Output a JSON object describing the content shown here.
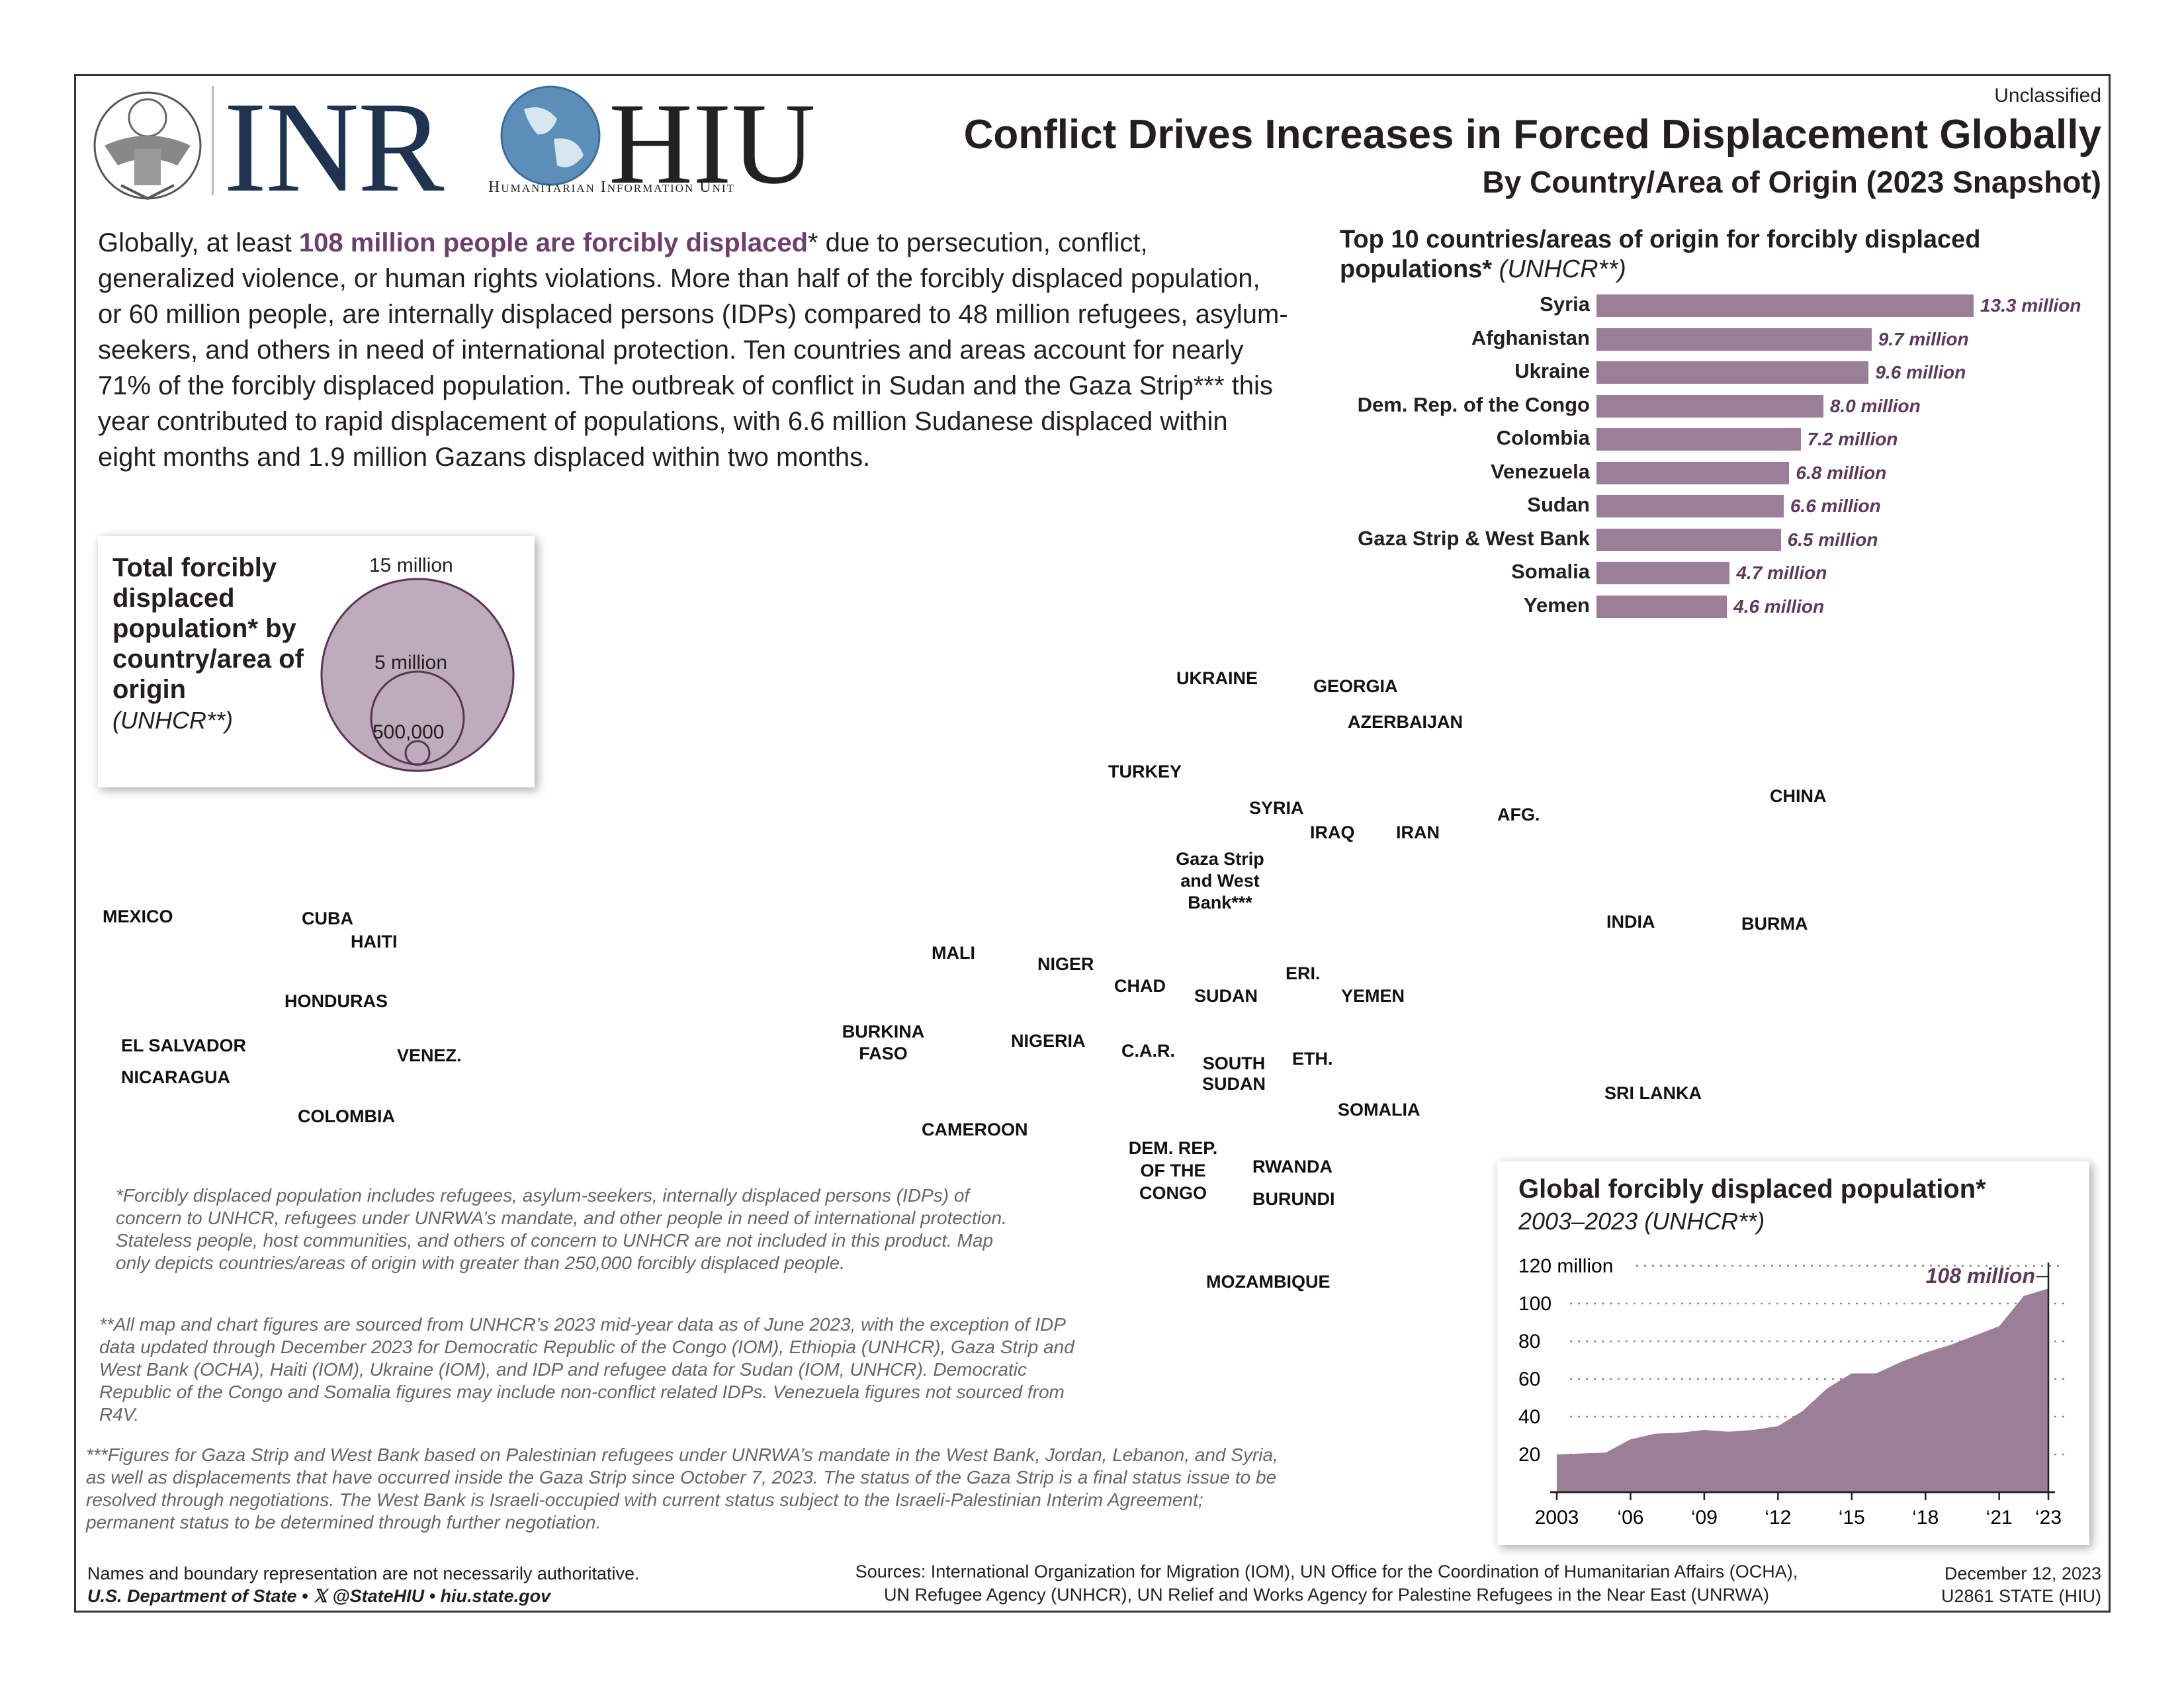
{
  "header": {
    "classification": "Unclassified",
    "logo_inr": "INR",
    "logo_hiu": "HIU",
    "logo_hiu_sub": "Humanitarian Information Unit",
    "title": "Conflict Drives Increases in Forced Displacement Globally",
    "subtitle": "By Country/Area of Origin (2023 Snapshot)"
  },
  "intro": {
    "before": "Globally, at least ",
    "highlight": "108 million people are forcibly displaced",
    "after": "* due to persecution, conflict, generalized violence, or human rights violations. More than half of the forcibly displaced population, or 60 million people, are internally displaced persons (IDPs) compared to 48 million refugees, asylum-seekers, and others in need of international protection. Ten countries and areas account for nearly 71% of the forcibly displaced population. The outbreak of conflict in Sudan and the Gaza Strip*** this year contributed to rapid displacement of populations, with 6.6 million Sudanese displaced within eight months and 1.9 million Gazans displaced within two months."
  },
  "legend": {
    "title": "Total forcibly displaced population* by country/area of origin",
    "source": "(UNHCR**)",
    "sizes": [
      {
        "label": "15 million",
        "value": 15000000
      },
      {
        "label": "5 million",
        "value": 5000000
      },
      {
        "label": "500,000",
        "value": 500000
      }
    ]
  },
  "top10": {
    "title": "Top 10 countries/areas of origin for forcibly displaced populations*",
    "source": "(UNHCR**)",
    "items": [
      {
        "name": "Syria",
        "value": 13.3,
        "label": "13.3 million"
      },
      {
        "name": "Afghanistan",
        "value": 9.7,
        "label": "9.7 million"
      },
      {
        "name": "Ukraine",
        "value": 9.6,
        "label": "9.6 million"
      },
      {
        "name": "Dem. Rep. of the Congo",
        "value": 8.0,
        "label": "8.0 million"
      },
      {
        "name": "Colombia",
        "value": 7.2,
        "label": "7.2 million"
      },
      {
        "name": "Venezuela",
        "value": 6.8,
        "label": "6.8 million"
      },
      {
        "name": "Sudan",
        "value": 6.6,
        "label": "6.6 million"
      },
      {
        "name": "Gaza Strip & West Bank",
        "value": 6.5,
        "label": "6.5 million"
      },
      {
        "name": "Somalia",
        "value": 4.7,
        "label": "4.7 million"
      },
      {
        "name": "Yemen",
        "value": 4.6,
        "label": "4.6 million"
      }
    ]
  },
  "map_labels": {
    "ukraine": "UKRAINE",
    "georgia": "GEORGIA",
    "azerbaijan": "AZERBAIJAN",
    "turkey": "TURKEY",
    "syria": "SYRIA",
    "iraq": "IRAQ",
    "iran": "IRAN",
    "afg": "AFG.",
    "china": "CHINA",
    "india": "INDIA",
    "burma": "BURMA",
    "sri_lanka": "SRI LANKA",
    "gaza_1": "Gaza Strip",
    "gaza_2": "and West",
    "gaza_3": "Bank***",
    "mexico": "MEXICO",
    "cuba": "CUBA",
    "haiti": "HAITI",
    "honduras": "HONDURAS",
    "el_salvador": "EL SALVADOR",
    "nicaragua": "NICARAGUA",
    "venez": "VENEZ.",
    "colombia": "COLOMBIA",
    "mali": "MALI",
    "niger": "NIGER",
    "chad": "CHAD",
    "sudan": "SUDAN",
    "eri": "ERI.",
    "yemen": "YEMEN",
    "burkina_1": "BURKINA",
    "burkina_2": "FASO",
    "nigeria": "NIGERIA",
    "car": "C.A.R.",
    "south_sudan_1": "SOUTH",
    "south_sudan_2": "SUDAN",
    "eth": "ETH.",
    "somalia": "SOMALIA",
    "cameroon": "CAMEROON",
    "drc_1": "DEM. REP.",
    "drc_2": "OF THE",
    "drc_3": "CONGO",
    "rwanda": "RWANDA",
    "burundi": "BURUNDI",
    "mozambique": "MOZAMBIQUE"
  },
  "notes": {
    "n1": "*Forcibly displaced population includes refugees, asylum-seekers, internally displaced persons (IDPs) of concern to UNHCR, refugees under UNRWA’s mandate, and other people in need of international protection. Stateless people, host communities, and others of concern to UNHCR are not included in this product. Map only depicts countries/areas of origin with greater than 250,000 forcibly displaced people.",
    "n2": "**All map and chart figures are sourced from UNHCR’s 2023 mid-year data as of June 2023, with the exception of IDP data updated through December 2023 for Democratic Republic of the Congo (IOM), Ethiopia (UNHCR), Gaza Strip and West Bank (OCHA), Haiti (IOM), Ukraine (IOM), and IDP and refugee data for Sudan (IOM, UNHCR). Democratic Republic of the Congo and Somalia figures may include non-conflict related IDPs. Venezuela figures not sourced from R4V.",
    "n3": "***Figures for Gaza Strip and West Bank based on Palestinian refugees under UNRWA’s mandate in the West Bank, Jordan, Lebanon, and Syria, as well as displacements that have occurred inside the Gaza Strip since October 7, 2023. The status of the Gaza Strip is a final status issue to be resolved through negotiations. The West Bank is Israeli-occupied with current status subject to the Israeli-Palestinian Interim Agreement; permanent status to be determined through further negotiation."
  },
  "footer": {
    "boundary": "Names and boundary representation are not necessarily authoritative.",
    "dept": "U.S. Department of State •  𝕏 @StateHIU • hiu.state.gov",
    "sources_1": "Sources: International Organization for Migration (IOM), UN Office for the Coordination of Humanitarian Affairs (OCHA),",
    "sources_2": "UN Refugee Agency (UNHCR), UN Relief and Works Agency for Palestine Refugees in the Near East (UNRWA)",
    "date": "December 12, 2023",
    "code": "U2861 STATE (HIU)"
  },
  "chart_data": {
    "type": "area",
    "title": "Global forcibly displaced population*",
    "subtitle": "2003–2023 (UNHCR**)",
    "x": [
      2003,
      2004,
      2005,
      2006,
      2007,
      2008,
      2009,
      2010,
      2011,
      2012,
      2013,
      2014,
      2015,
      2016,
      2017,
      2018,
      2019,
      2020,
      2021,
      2022,
      2023
    ],
    "values": [
      20,
      20.5,
      21,
      28,
      31,
      31.5,
      33,
      32,
      33,
      35,
      43,
      55,
      63,
      63,
      69,
      74,
      78,
      83,
      88,
      104,
      108
    ],
    "y_ticks": [
      20,
      40,
      60,
      80,
      100,
      120
    ],
    "y_tick_labels": [
      "20",
      "40",
      "60",
      "80",
      "100",
      "120 million"
    ],
    "x_ticks": [
      2003,
      2006,
      2009,
      2012,
      2015,
      2018,
      2021,
      2023
    ],
    "x_tick_labels": [
      "2003",
      "‘06",
      "‘09",
      "‘12",
      "‘15",
      "‘18",
      "‘21",
      "‘23"
    ],
    "ylim": [
      0,
      120
    ],
    "annotation": "108 million",
    "color": "#9b7e97"
  },
  "colors": {
    "bubble": "#9b7e97",
    "bubble_dark": "#6b4a67",
    "land": "#d9d9d9",
    "bar": "#9b7e97"
  }
}
